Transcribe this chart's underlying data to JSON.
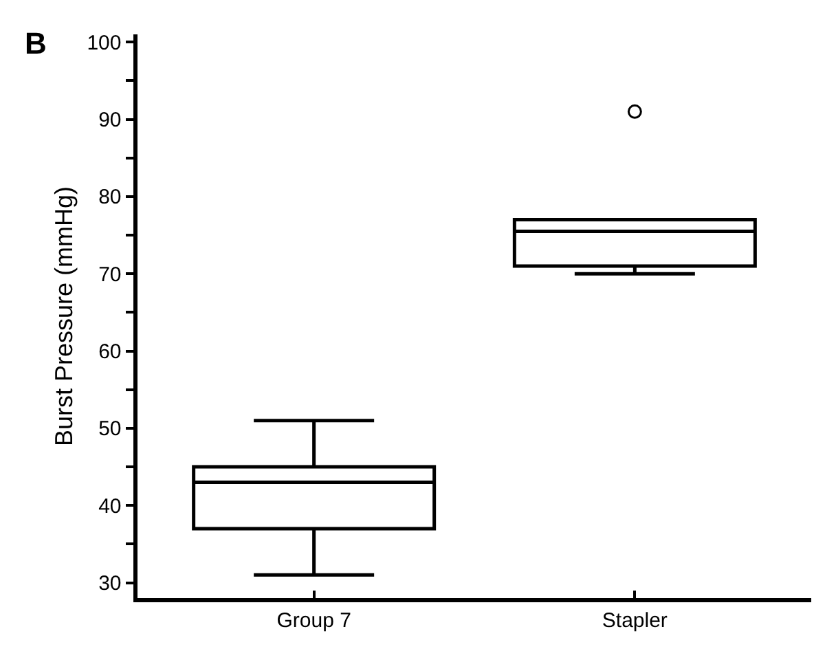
{
  "chart_data": {
    "type": "box",
    "ylabel": "Burst Pressure (mmHg)",
    "annotations": [
      "B"
    ],
    "categories": [
      "Group 7",
      "Stapler"
    ],
    "boxes": [
      {
        "low": 31,
        "q1": 37,
        "median": 43,
        "q3": 45,
        "high": 51
      },
      {
        "low": 70,
        "q1": 71,
        "median": 75.5,
        "q3": 77,
        "high": 77,
        "outliers": [
          91
        ]
      }
    ],
    "color": "#000000",
    "ylim": [
      28,
      101
    ],
    "yticks": [
      30,
      {
        "value": 35,
        "label": null
      },
      40,
      {
        "value": 45,
        "label": null
      },
      50,
      {
        "value": 55,
        "label": null
      },
      60,
      {
        "value": 65,
        "label": null
      },
      70,
      {
        "value": 75,
        "label": null
      },
      80,
      {
        "value": 85,
        "label": null
      },
      90,
      {
        "value": 95,
        "label": null
      },
      100
    ],
    "grid": false
  }
}
